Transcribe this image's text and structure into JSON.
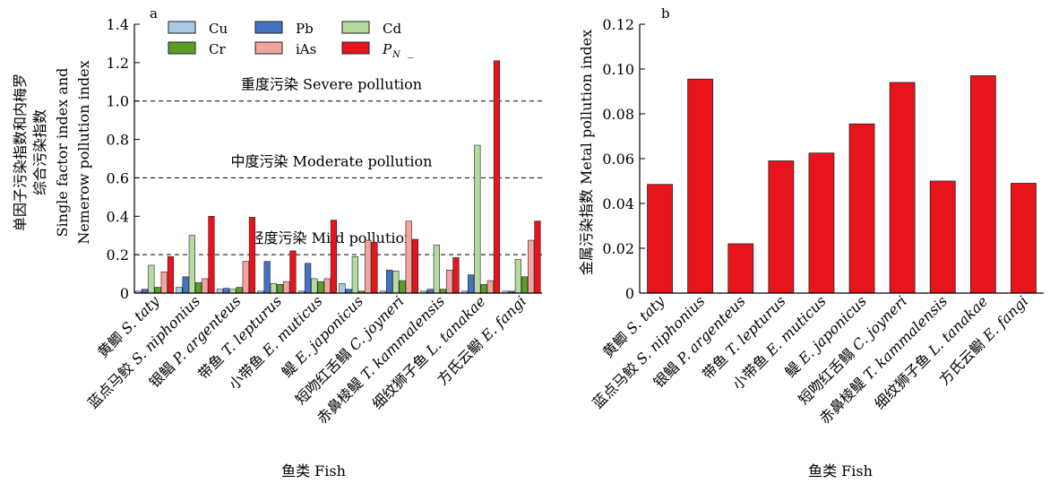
{
  "chart_data": [
    {
      "panel_label": "a",
      "type": "bar",
      "ylabel_lines": [
        "单因子污染指数和内梅罗",
        "综合污染指数",
        "Single factor index and",
        "Nemerow pollution index"
      ],
      "xlabel": "鱼类 Fish",
      "ylim": [
        0,
        1.4
      ],
      "yticks": [
        "0",
        "0.2",
        "0.4",
        "0.6",
        "0.8",
        "1.0",
        "1.2",
        "1.4"
      ],
      "categories": [
        {
          "cn": "黄鲫",
          "latin": "S. taty"
        },
        {
          "cn": "蓝点马鲛",
          "latin": "S. niphonius"
        },
        {
          "cn": "银鲳",
          "latin": "P. argenteus"
        },
        {
          "cn": "带鱼",
          "latin": "T. lepturus"
        },
        {
          "cn": "小带鱼",
          "latin": "E. muticus"
        },
        {
          "cn": "鳀",
          "latin": "E. japonicus"
        },
        {
          "cn": "短吻红舌鳎",
          "latin": "C. joyneri"
        },
        {
          "cn": "赤鼻棱鳀",
          "latin": "T. kammalensis"
        },
        {
          "cn": "细纹狮子鱼",
          "latin": "L. tanakae"
        },
        {
          "cn": "方氏云鳚",
          "latin": "E. fangi"
        }
      ],
      "series": [
        {
          "name": "Cu",
          "color": "#a7cbe6",
          "values": [
            0.01,
            0.03,
            0.02,
            0.01,
            0.01,
            0.05,
            0.01,
            0.01,
            0.01,
            0.01
          ]
        },
        {
          "name": "Pb",
          "color": "#4472c4",
          "values": [
            0.02,
            0.085,
            0.025,
            0.165,
            0.155,
            0.02,
            0.12,
            0.02,
            0.095,
            0.01
          ]
        },
        {
          "name": "Cd",
          "color": "#b5dba0",
          "values": [
            0.145,
            0.3,
            0.02,
            0.05,
            0.075,
            0.19,
            0.115,
            0.25,
            0.77,
            0.175
          ]
        },
        {
          "name": "Cr",
          "color": "#5a9e28",
          "values": [
            0.03,
            0.055,
            0.03,
            0.045,
            0.06,
            0.01,
            0.065,
            0.02,
            0.045,
            0.085
          ]
        },
        {
          "name": "iAs",
          "color": "#f4a3a0",
          "values": [
            0.11,
            0.075,
            0.165,
            0.06,
            0.075,
            0.275,
            0.375,
            0.12,
            0.065,
            0.275
          ]
        },
        {
          "name": "P_N",
          "color": "#e8141c",
          "values": [
            0.19,
            0.4,
            0.395,
            0.22,
            0.38,
            0.265,
            0.28,
            0.185,
            1.21,
            0.375
          ]
        }
      ],
      "legend_labels": [
        "Cu",
        "Pb",
        "Cd",
        "Cr",
        "iAs",
        "P",
        "N",
        "_"
      ],
      "thresholds": [
        {
          "value": 1.0,
          "label": "重度污染 Severe pollution"
        },
        {
          "value": 0.6,
          "label": "中度污染 Moderate pollution"
        },
        {
          "value": 0.2,
          "label": "轻度污染 Mild pollution"
        }
      ],
      "legend_position": "top-left"
    },
    {
      "panel_label": "b",
      "type": "bar",
      "ylabel": "金属污染指数 Metal pollution index",
      "xlabel": "鱼类 Fish",
      "ylim": [
        0,
        0.12
      ],
      "yticks": [
        "0",
        "0.02",
        "0.04",
        "0.06",
        "0.08",
        "0.10",
        "0.12"
      ],
      "categories": [
        {
          "cn": "黄鲫",
          "latin": "S. taty"
        },
        {
          "cn": "蓝点马鲛",
          "latin": "S. niphonius"
        },
        {
          "cn": "银鲳",
          "latin": "P. argenteus"
        },
        {
          "cn": "带鱼",
          "latin": "T. lepturus"
        },
        {
          "cn": "小带鱼",
          "latin": "E. muticus"
        },
        {
          "cn": "鳀",
          "latin": "E. japonicus"
        },
        {
          "cn": "短吻红舌鳎",
          "latin": "C. joyneri"
        },
        {
          "cn": "赤鼻棱鳀",
          "latin": "T. kammalensis"
        },
        {
          "cn": "细纹狮子鱼",
          "latin": "L. tanakae"
        },
        {
          "cn": "方氏云鳚",
          "latin": "E. fangi"
        }
      ],
      "values": [
        0.0485,
        0.0955,
        0.022,
        0.059,
        0.0625,
        0.0755,
        0.094,
        0.05,
        0.097,
        0.049
      ],
      "bar_color": "#e8141c"
    }
  ]
}
